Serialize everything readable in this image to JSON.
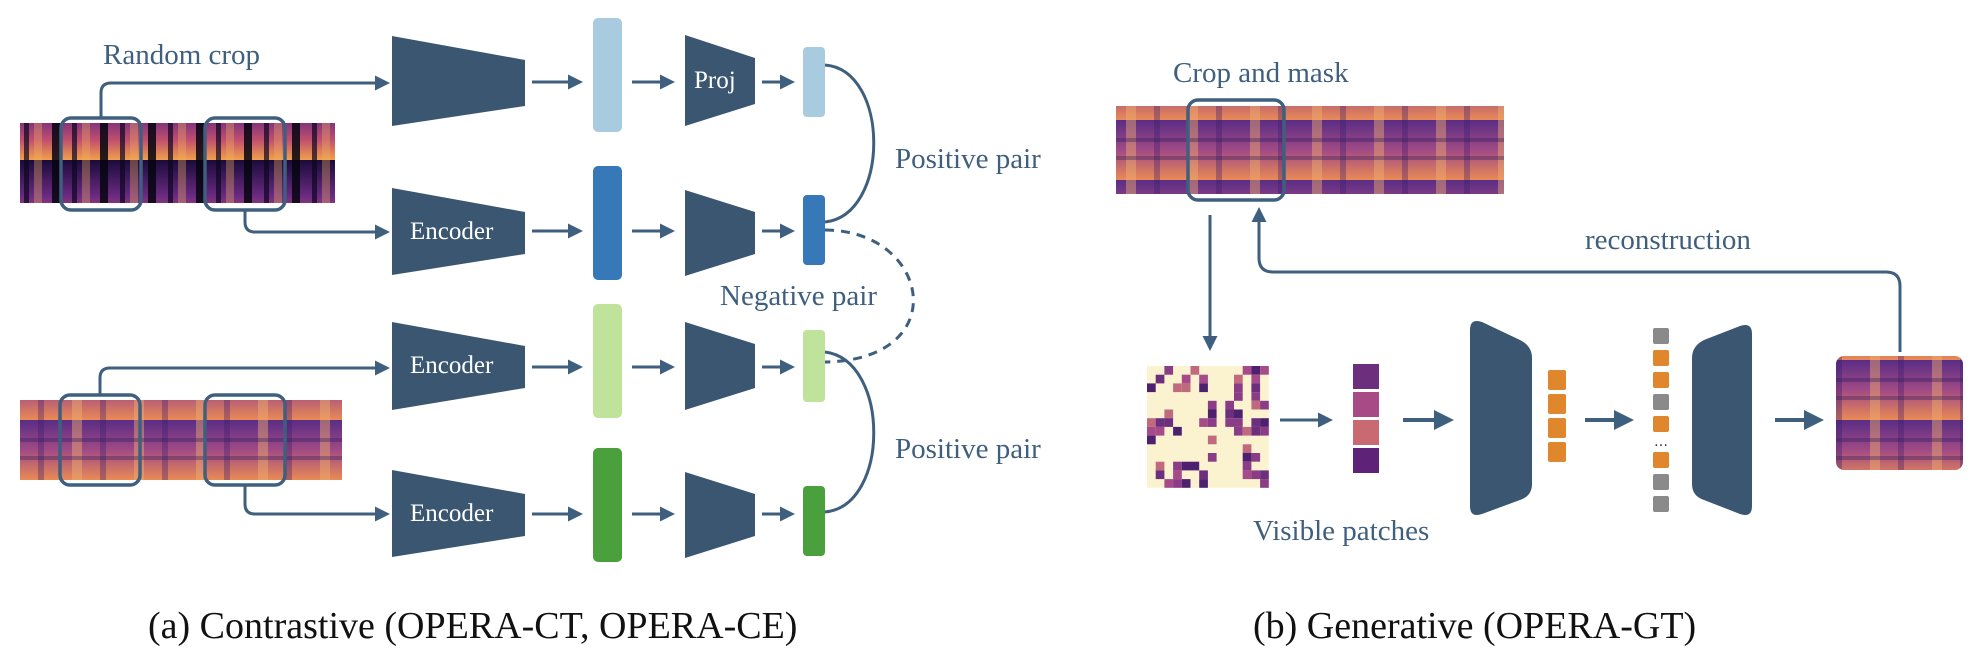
{
  "contrastive": {
    "random_crop_label": "Random crop",
    "proj_label": "Proj",
    "encoder_label": "Encoder",
    "positive_pair_label": "Positive pair",
    "negative_pair_label": "Negative pair",
    "caption": "(a) Contrastive (OPERA-CT, OPERA-CE)"
  },
  "generative": {
    "crop_mask_label": "Crop and mask",
    "reconstruction_label": "reconstruction",
    "visible_patches_label": "Visible patches",
    "caption": "(b) Generative (OPERA-GT)"
  },
  "colors": {
    "encoder": "#3b5670",
    "arrow": "#3f5f7f",
    "feat_light_blue": "#a8cbe0",
    "feat_blue": "#3778b8",
    "feat_light_green": "#bfe39a",
    "feat_green": "#4aa03c",
    "token_orange": "#e0862c",
    "token_gray": "#8a8a8a"
  }
}
